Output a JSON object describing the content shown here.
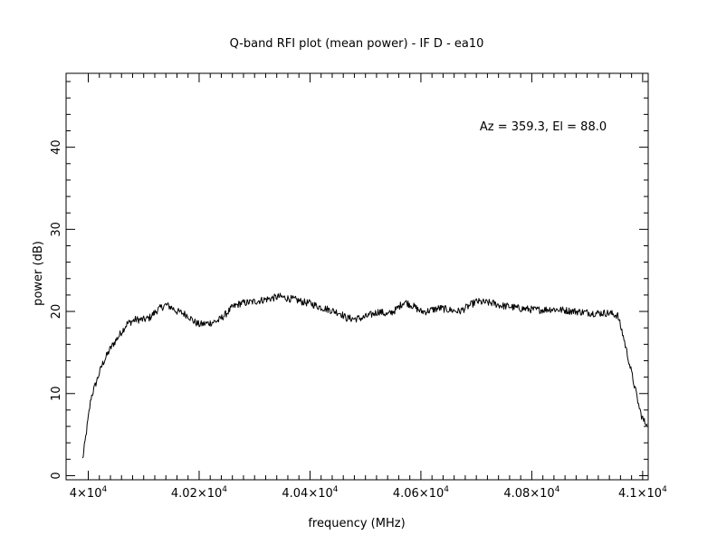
{
  "chart_data": {
    "type": "line",
    "title": "Q-band RFI plot (mean power) - IF D - ea10",
    "xlabel": "frequency (MHz)",
    "ylabel": "power (dB)",
    "annotation": "Az = 359.3, El = 88.0",
    "xlim": [
      39960,
      41010
    ],
    "ylim": [
      -0.5,
      49
    ],
    "grid": false,
    "x_ticks": [
      {
        "value": 40000,
        "mantissa": "4",
        "exponent": "4"
      },
      {
        "value": 40200,
        "mantissa": "4.02",
        "exponent": "4"
      },
      {
        "value": 40400,
        "mantissa": "4.04",
        "exponent": "4"
      },
      {
        "value": 40600,
        "mantissa": "4.06",
        "exponent": "4"
      },
      {
        "value": 40800,
        "mantissa": "4.08",
        "exponent": "4"
      },
      {
        "value": 41000,
        "mantissa": "4.1",
        "exponent": "4"
      }
    ],
    "y_ticks": [
      {
        "value": 0,
        "label": "0"
      },
      {
        "value": 10,
        "label": "10"
      },
      {
        "value": 20,
        "label": "20"
      },
      {
        "value": 30,
        "label": "30"
      },
      {
        "value": 40,
        "label": "40"
      }
    ],
    "series": [
      {
        "color": "#000000",
        "x": [
          39990,
          39993,
          39998,
          40005,
          40015,
          40025,
          40040,
          40055,
          40070,
          40085,
          40100,
          40110,
          40125,
          40140,
          40150,
          40160,
          40170,
          40180,
          40190,
          40200,
          40210,
          40220,
          40235,
          40250,
          40260,
          40275,
          40290,
          40300,
          40315,
          40330,
          40345,
          40360,
          40375,
          40390,
          40400,
          40415,
          40430,
          40445,
          40455,
          40465,
          40480,
          40495,
          40510,
          40525,
          40540,
          40555,
          40570,
          40585,
          40600,
          40610,
          40620,
          40635,
          40650,
          40660,
          40670,
          40680,
          40690,
          40700,
          40715,
          40730,
          40745,
          40760,
          40775,
          40790,
          40805,
          40820,
          40835,
          40850,
          40865,
          40880,
          40895,
          40910,
          40925,
          40940,
          40955,
          40965,
          40975,
          40985,
          40990,
          40994,
          40998,
          41001,
          41004,
          41008
        ],
        "y": [
          2.0,
          3.5,
          6.0,
          9.5,
          11.5,
          13.5,
          15.5,
          17.0,
          18.5,
          19.0,
          19.0,
          19.2,
          20.2,
          20.8,
          20.5,
          20.0,
          19.8,
          19.5,
          18.8,
          18.4,
          18.5,
          18.6,
          18.9,
          19.8,
          20.5,
          21.0,
          21.1,
          21.2,
          21.4,
          21.6,
          21.8,
          21.6,
          21.4,
          21.1,
          21.0,
          20.6,
          20.3,
          20.0,
          19.8,
          19.2,
          19.1,
          19.2,
          19.6,
          20.0,
          19.6,
          20.2,
          21.2,
          20.7,
          20.0,
          20.0,
          20.2,
          20.4,
          20.2,
          20.1,
          20.0,
          20.4,
          20.8,
          21.2,
          21.1,
          21.0,
          20.7,
          20.6,
          20.4,
          20.3,
          20.2,
          20.2,
          20.3,
          20.2,
          20.1,
          20.0,
          19.9,
          19.8,
          19.8,
          19.8,
          19.5,
          17.0,
          14.0,
          11.0,
          9.5,
          8.2,
          7.3,
          6.8,
          6.5,
          6.3
        ]
      }
    ]
  }
}
